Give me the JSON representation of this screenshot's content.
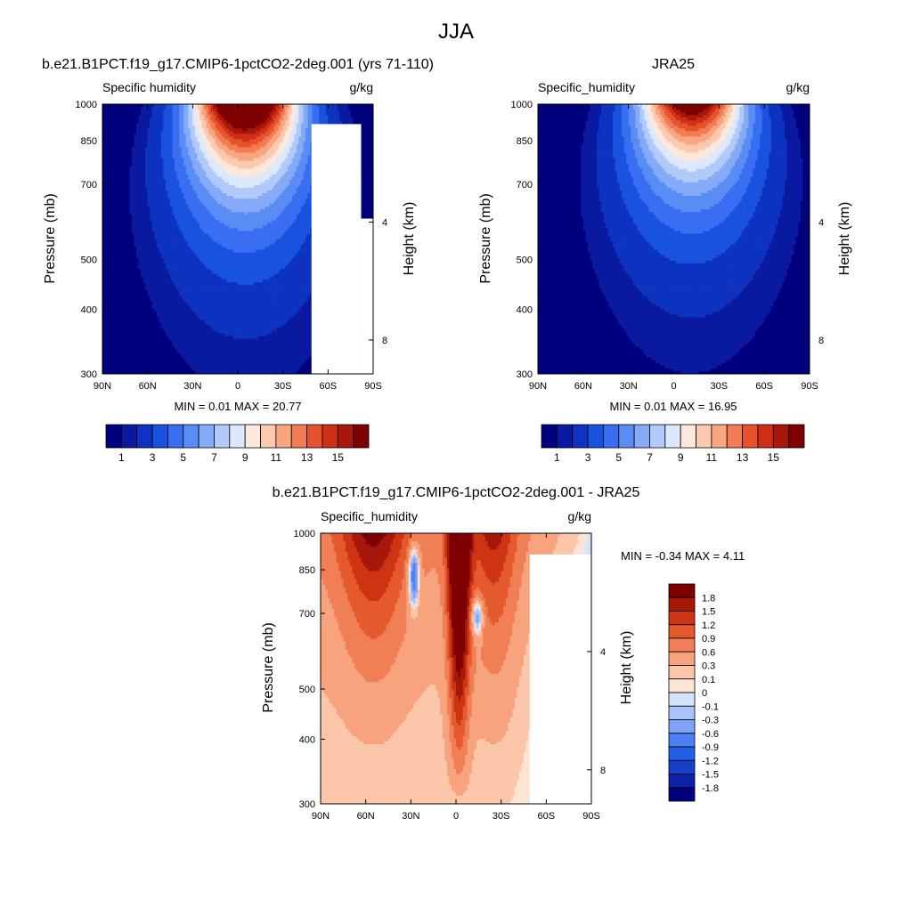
{
  "figure": {
    "title": "JJA"
  },
  "colors": {
    "abs_palette": [
      "#00007f",
      "#0a1aa0",
      "#0d33c0",
      "#1a52e0",
      "#3a6ef2",
      "#5a8cf5",
      "#85aaf8",
      "#b2caf9",
      "#dce8fb",
      "#fde8dc",
      "#fbc9ad",
      "#f8a67f",
      "#f27c53",
      "#e5522d",
      "#cf2f14",
      "#a8170a",
      "#7f0000"
    ],
    "diff_palette": [
      "#00007f",
      "#0a22a8",
      "#1440cc",
      "#245fe8",
      "#4a80f3",
      "#7ea3f7",
      "#a9c4f9",
      "#d6e4fb",
      "#fde5d6",
      "#fbc6aa",
      "#f7a47e",
      "#f17f55",
      "#e45a2e",
      "#ce3413",
      "#a5180a",
      "#7f0000"
    ]
  },
  "axes": {
    "lat_ticks": [
      "90N",
      "60N",
      "30N",
      "0",
      "30S",
      "60S",
      "90S"
    ],
    "p_ticks": [
      "300",
      "400",
      "500",
      "700",
      "850",
      "1000"
    ],
    "h_ticks": [
      "8",
      "4"
    ],
    "ylabel": "Pressure (mb)",
    "y2label": "Height (km)"
  },
  "chart_data": [
    {
      "type": "heatmap",
      "title": "b.e21.B1PCT.f19_g17.CMIP6-1pctCO2-2deg.001 (yrs 71-110)",
      "left_label": "Specific humidity",
      "units": "g/kg",
      "stats": "MIN =   0.01  MAX =  20.77",
      "min": 0.01,
      "max": 20.77,
      "xlabel": "",
      "ylabel": "Pressure (mb)",
      "y2label": "Height (km)",
      "xlim": [
        90,
        -90
      ],
      "ylim": [
        1000,
        300
      ],
      "colorbar_labels": [
        "1",
        "3",
        "5",
        "7",
        "9",
        "11",
        "13",
        "15"
      ],
      "peak_lat": -5,
      "masked_region": "60S-90S below 850mb"
    },
    {
      "type": "heatmap",
      "title": "JRA25",
      "left_label": "Specific_humidity",
      "units": "g/kg",
      "stats": "MIN =   0.01  MAX =  16.95",
      "min": 0.01,
      "max": 16.95,
      "xlabel": "",
      "ylabel": "Pressure (mb)",
      "y2label": "Height (km)",
      "xlim": [
        90,
        -90
      ],
      "ylim": [
        1000,
        300
      ],
      "colorbar_labels": [
        "1",
        "3",
        "5",
        "7",
        "9",
        "11",
        "13",
        "15"
      ],
      "peak_lat": -12
    },
    {
      "type": "heatmap",
      "title": "b.e21.B1PCT.f19_g17.CMIP6-1pctCO2-2deg.001 - JRA25",
      "left_label": "Specific_humidity",
      "units": "g/kg",
      "stats": "MIN =  -0.34  MAX =   4.11",
      "min": -0.34,
      "max": 4.11,
      "xlabel": "",
      "ylabel": "Pressure (mb)",
      "y2label": "Height (km)",
      "xlim": [
        90,
        -90
      ],
      "ylim": [
        1000,
        300
      ],
      "colorbar_labels": [
        "1.8",
        "1.5",
        "1.2",
        "0.9",
        "0.6",
        "0.3",
        "0.1",
        "0",
        "-0.1",
        "-0.3",
        "-0.6",
        "-0.9",
        "-1.2",
        "-1.5",
        "-1.8"
      ],
      "levels": [
        -1.8,
        -1.5,
        -1.2,
        -0.9,
        -0.6,
        -0.3,
        -0.1,
        0,
        0.1,
        0.3,
        0.6,
        0.9,
        1.2,
        1.5,
        1.8
      ]
    }
  ]
}
